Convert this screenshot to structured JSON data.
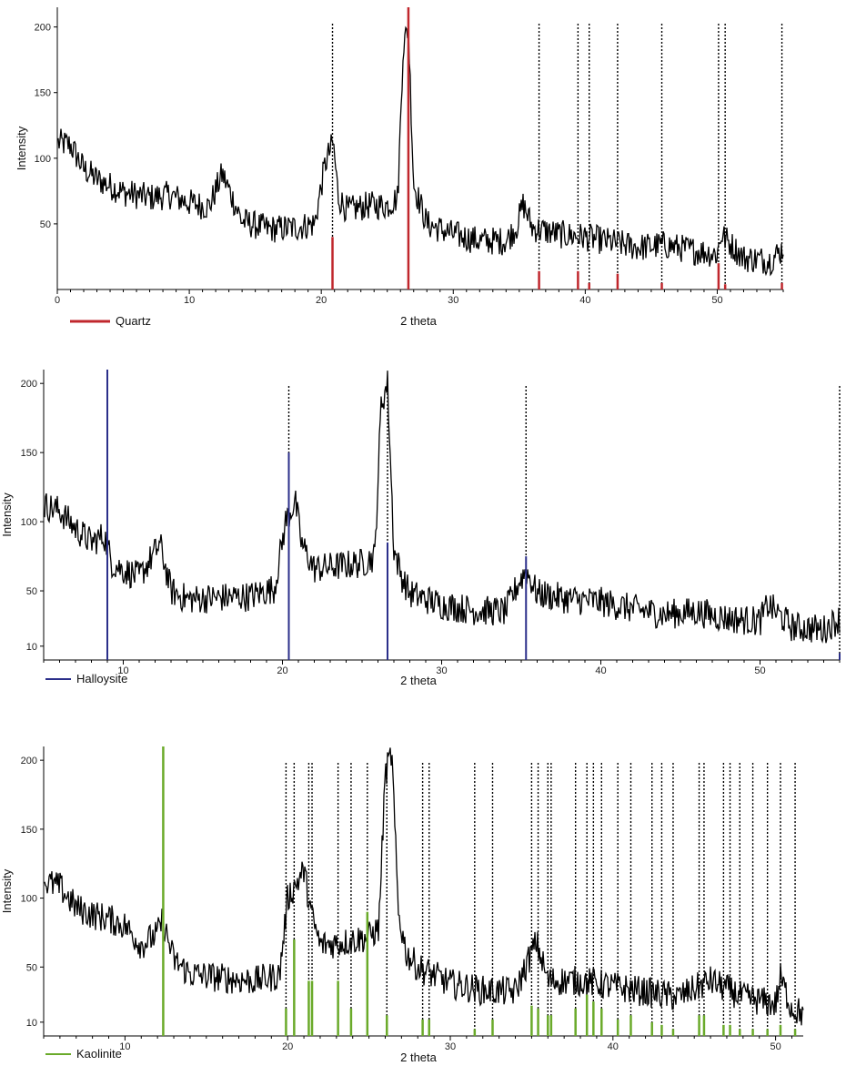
{
  "chart_data": [
    {
      "type": "line",
      "xlabel": "2 theta",
      "ylabel": "Intensity",
      "xlim": [
        0,
        55
      ],
      "ylim": [
        0,
        215
      ],
      "xticks": [
        0,
        10,
        20,
        30,
        40,
        50
      ],
      "yticks": [
        50,
        100,
        150,
        200
      ],
      "legend": {
        "label": "Quartz",
        "color": "#c0272d",
        "position": "bottom-left"
      },
      "reference_color": "#c0272d",
      "reference_peaks": [
        {
          "x": 20.85,
          "height": 40
        },
        {
          "x": 26.6,
          "height": 215
        },
        {
          "x": 36.5,
          "height": 14
        },
        {
          "x": 39.45,
          "height": 14
        },
        {
          "x": 40.3,
          "height": 5
        },
        {
          "x": 42.45,
          "height": 12
        },
        {
          "x": 45.8,
          "height": 5
        },
        {
          "x": 50.1,
          "height": 20
        },
        {
          "x": 50.6,
          "height": 4
        },
        {
          "x": 54.9,
          "height": 5
        }
      ],
      "series": [
        {
          "x": [
            0,
            1,
            2,
            3,
            5,
            7,
            8.5,
            10,
            11.5,
            12.5,
            14,
            16,
            18,
            19.5,
            20.3,
            20.9,
            21.3,
            22,
            23.5,
            25,
            25.8,
            26.2,
            26.6,
            27,
            27.5,
            28,
            30,
            32,
            34,
            34.8,
            35.3,
            36,
            38,
            40,
            42,
            44,
            46,
            48,
            50,
            50.3,
            52,
            54,
            55
          ],
          "y": [
            112,
            110,
            92,
            84,
            74,
            70,
            72,
            66,
            63,
            88,
            52,
            46,
            47,
            50,
            96,
            112,
            70,
            60,
            64,
            64,
            70,
            185,
            200,
            80,
            65,
            50,
            42,
            37,
            37,
            48,
            65,
            47,
            42,
            40,
            36,
            32,
            34,
            30,
            27,
            42,
            24,
            22,
            31
          ]
        }
      ]
    },
    {
      "type": "line",
      "xlabel": "2 theta",
      "ylabel": "Intensity",
      "xlim": [
        5,
        55
      ],
      "ylim": [
        0,
        210
      ],
      "xticks": [
        10,
        20,
        30,
        40,
        50
      ],
      "yticks": [
        10,
        50,
        100,
        150,
        200
      ],
      "legend": {
        "label": "Halloysite",
        "color": "#2b2f8a",
        "position": "bottom-left"
      },
      "reference_color": "#2b2f8a",
      "reference_peaks": [
        {
          "x": 9,
          "height": 210
        },
        {
          "x": 20.4,
          "height": 150
        },
        {
          "x": 26.6,
          "height": 85
        },
        {
          "x": 35.3,
          "height": 75
        },
        {
          "x": 55,
          "height": 5
        }
      ],
      "series": [
        {
          "x": [
            5,
            6,
            7,
            8,
            8.8,
            9.3,
            10,
            11,
            12,
            12.3,
            13,
            14,
            16,
            18,
            19.5,
            20.2,
            20.8,
            21.2,
            22,
            23.5,
            25,
            25.8,
            26.2,
            26.6,
            27,
            27.5,
            28,
            30,
            32,
            34,
            34.8,
            35.3,
            36,
            38,
            40,
            42,
            44,
            46,
            48,
            50,
            50.5,
            52,
            54,
            55
          ],
          "y": [
            112,
            108,
            95,
            85,
            90,
            70,
            65,
            60,
            78,
            84,
            50,
            44,
            45,
            46,
            52,
            100,
            115,
            84,
            66,
            68,
            70,
            75,
            185,
            200,
            80,
            60,
            48,
            40,
            36,
            35,
            55,
            65,
            48,
            44,
            42,
            37,
            33,
            35,
            30,
            28,
            40,
            24,
            22,
            30
          ]
        }
      ]
    },
    {
      "type": "line",
      "xlabel": "2 theta",
      "ylabel": "Intensity",
      "xlim": [
        5,
        51.7
      ],
      "ylim": [
        0,
        210
      ],
      "xticks": [
        10,
        20,
        30,
        40,
        50
      ],
      "yticks": [
        10,
        50,
        100,
        150,
        200
      ],
      "legend": {
        "label": "Kaolinite",
        "color": "#6aaa2a",
        "position": "bottom-left"
      },
      "reference_color": "#6aaa2a",
      "reference_peaks": [
        {
          "x": 12.35,
          "height": 210
        },
        {
          "x": 19.9,
          "height": 20
        },
        {
          "x": 20.4,
          "height": 70
        },
        {
          "x": 21.3,
          "height": 40
        },
        {
          "x": 21.5,
          "height": 40
        },
        {
          "x": 23.1,
          "height": 40
        },
        {
          "x": 23.9,
          "height": 20
        },
        {
          "x": 24.9,
          "height": 90
        },
        {
          "x": 26.1,
          "height": 15
        },
        {
          "x": 28.3,
          "height": 12
        },
        {
          "x": 28.7,
          "height": 12
        },
        {
          "x": 31.5,
          "height": 5
        },
        {
          "x": 32.6,
          "height": 12
        },
        {
          "x": 35.0,
          "height": 22
        },
        {
          "x": 35.4,
          "height": 20
        },
        {
          "x": 36.0,
          "height": 15
        },
        {
          "x": 36.2,
          "height": 15
        },
        {
          "x": 37.7,
          "height": 20
        },
        {
          "x": 38.4,
          "height": 30
        },
        {
          "x": 38.8,
          "height": 25
        },
        {
          "x": 39.3,
          "height": 20
        },
        {
          "x": 40.3,
          "height": 12
        },
        {
          "x": 41.1,
          "height": 15
        },
        {
          "x": 42.4,
          "height": 10
        },
        {
          "x": 43.0,
          "height": 8
        },
        {
          "x": 43.7,
          "height": 5
        },
        {
          "x": 45.3,
          "height": 15
        },
        {
          "x": 45.6,
          "height": 15
        },
        {
          "x": 46.8,
          "height": 8
        },
        {
          "x": 47.2,
          "height": 8
        },
        {
          "x": 47.8,
          "height": 5
        },
        {
          "x": 48.6,
          "height": 5
        },
        {
          "x": 49.5,
          "height": 5
        },
        {
          "x": 50.3,
          "height": 8
        },
        {
          "x": 51.2,
          "height": 5
        }
      ],
      "series": [
        {
          "x": [
            5,
            6,
            7,
            8,
            9,
            10,
            11,
            12,
            12.3,
            13,
            14,
            16,
            18,
            19.5,
            20,
            20.6,
            21.0,
            21.5,
            22,
            23.5,
            25,
            25.6,
            26.0,
            26.4,
            26.8,
            27.3,
            28,
            30,
            32,
            34,
            34.8,
            35.3,
            36,
            38,
            40,
            42,
            44,
            46,
            48,
            50,
            50.3,
            51,
            51.7
          ],
          "y": [
            112,
            108,
            93,
            88,
            85,
            80,
            66,
            74,
            84,
            55,
            45,
            42,
            40,
            44,
            100,
            112,
            120,
            86,
            66,
            68,
            72,
            78,
            190,
            205,
            90,
            60,
            50,
            38,
            33,
            32,
            55,
            68,
            40,
            40,
            36,
            32,
            28,
            40,
            28,
            23,
            42,
            20,
            16
          ]
        }
      ]
    }
  ]
}
